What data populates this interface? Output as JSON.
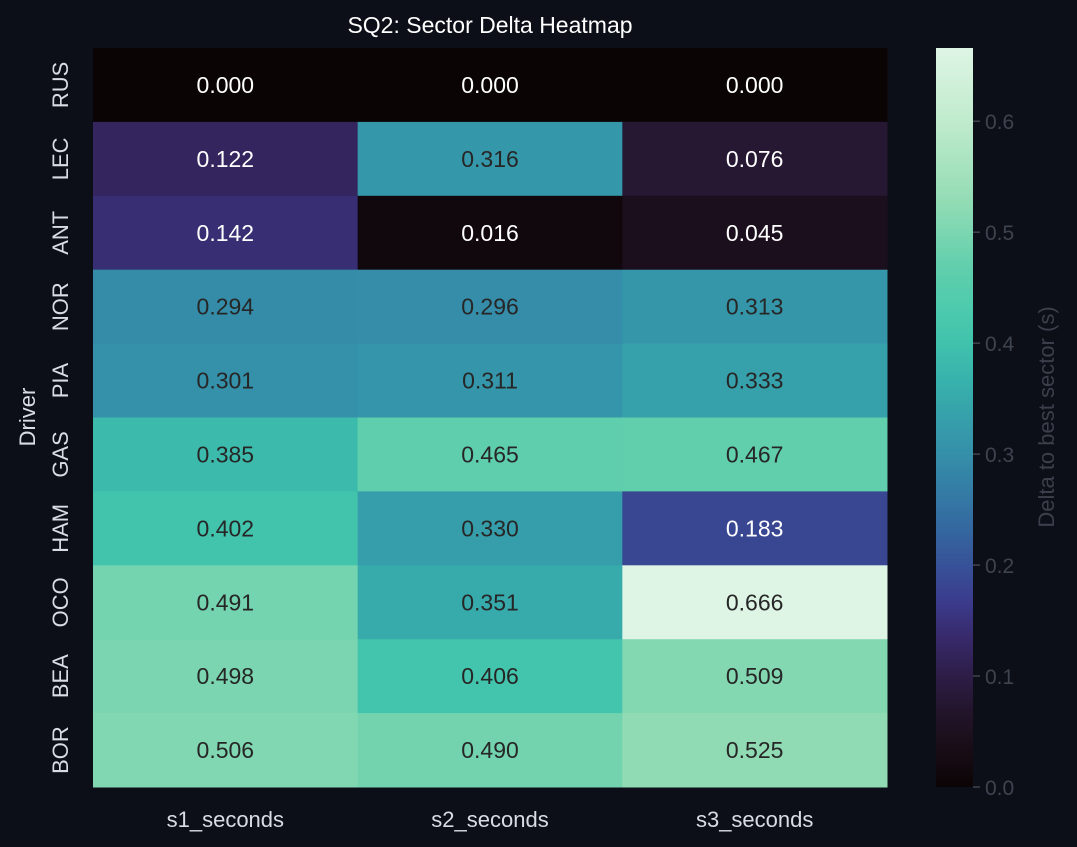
{
  "chart_data": {
    "type": "heatmap",
    "title": "SQ2: Sector Delta Heatmap",
    "xlabel": "",
    "ylabel": "Driver",
    "columns": [
      "s1_seconds",
      "s2_seconds",
      "s3_seconds"
    ],
    "rows": [
      "RUS",
      "LEC",
      "ANT",
      "NOR",
      "PIA",
      "GAS",
      "HAM",
      "OCO",
      "BEA",
      "BOR"
    ],
    "values": [
      [
        0.0,
        0.0,
        0.0
      ],
      [
        0.122,
        0.316,
        0.076
      ],
      [
        0.142,
        0.016,
        0.045
      ],
      [
        0.294,
        0.296,
        0.313
      ],
      [
        0.301,
        0.311,
        0.333
      ],
      [
        0.385,
        0.465,
        0.467
      ],
      [
        0.402,
        0.33,
        0.183
      ],
      [
        0.491,
        0.351,
        0.666
      ],
      [
        0.498,
        0.406,
        0.509
      ],
      [
        0.506,
        0.49,
        0.525
      ]
    ],
    "value_format": "0.000",
    "colormap": "mako",
    "vmin": 0.0,
    "vmax": 0.666,
    "colorbar": {
      "label": "Delta to best sector (s)",
      "ticks": [
        0.0,
        0.1,
        0.2,
        0.3,
        0.4,
        0.5,
        0.6
      ],
      "tick_labels": [
        "0.0",
        "0.1",
        "0.2",
        "0.3",
        "0.4",
        "0.5",
        "0.6"
      ],
      "placement": "right"
    },
    "grid": false
  },
  "colors": {
    "background": "#0c0f17",
    "text": "#d8dce4",
    "colorbar_text": "#3e4350",
    "cell_text_dark_bg": "#ffffff",
    "cell_text_light_bg": "#262626"
  }
}
